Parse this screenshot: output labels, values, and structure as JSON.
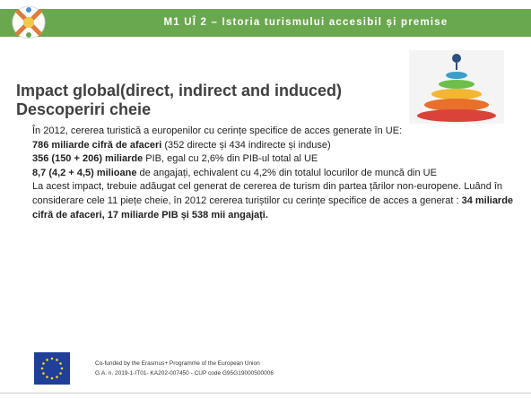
{
  "header": {
    "title": "M1 UÎ 2 – Istoria turismului accesibil și premise"
  },
  "heading": {
    "line1": "Impact global(direct, indirect and induced)",
    "line2": "Descoperiri cheie"
  },
  "body": [
    [
      {
        "text": "În 2012, cererea turistică a europenilor cu cerințe specifice de acces generate în UE:",
        "bold": false
      }
    ],
    [
      {
        "text": "786 miliarde cifră de afaceri",
        "bold": true
      },
      {
        "text": " (352 directe și 434 indirecte și induse)",
        "bold": false
      }
    ],
    [
      {
        "text": "356 (150 + 206) miliarde",
        "bold": true
      },
      {
        "text": " PIB, egal cu 2,6% din PIB-ul total al UE",
        "bold": false
      }
    ],
    [
      {
        "text": "8,7 (4,2 + 4,5) milioane",
        "bold": true
      },
      {
        "text": " de angajați, echivalent cu 4,2% din totalul locurilor de muncă din UE",
        "bold": false
      }
    ],
    [
      {
        "text": "La acest impact, trebuie adăugat cel generat de cererea de turism din partea țărilor non-europene. Luând în considerare cele 11 piețe cheie, în 2012 cererea turiștilor cu cerințe specifice de acces a generat : ",
        "bold": false
      },
      {
        "text": "34 miliarde cifră de afaceri, 17 miliarde PIB și 538 mii angajați.",
        "bold": true
      }
    ]
  ],
  "footer": {
    "line1": "Co-funded by the Erasmus+ Programme of the European Union",
    "line2": "G.A. n. 2019-1-IT01- KA202-007450 - CUP code G95G19000500006"
  }
}
